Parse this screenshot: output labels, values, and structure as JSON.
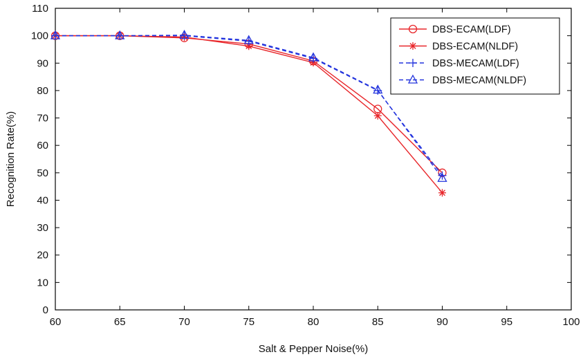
{
  "chart_data": {
    "type": "line",
    "title": "",
    "xlabel": "Salt & Pepper Noise(%)",
    "ylabel": "Recognition Rate(%)",
    "xlim": [
      60,
      100
    ],
    "ylim": [
      0,
      110
    ],
    "xticks": [
      60,
      65,
      70,
      75,
      80,
      85,
      90,
      95,
      100
    ],
    "yticks": [
      0,
      10,
      20,
      30,
      40,
      50,
      60,
      70,
      80,
      90,
      100,
      110
    ],
    "grid": false,
    "legend_position": "top-right",
    "x": [
      60,
      65,
      70,
      75,
      80,
      85,
      90
    ],
    "series": [
      {
        "name": "DBS-ECAM(LDF)",
        "color": "#e8262a",
        "line_style": "solid",
        "marker": "circle",
        "values": [
          100,
          100,
          99.2,
          97,
          90.8,
          73.3,
          50
        ]
      },
      {
        "name": "DBS-ECAM(NLDF)",
        "color": "#e8262a",
        "line_style": "solid",
        "marker": "star",
        "values": [
          100,
          100,
          99.5,
          96.2,
          90.2,
          70.8,
          42.7
        ]
      },
      {
        "name": "DBS-MECAM(LDF)",
        "color": "#2233dd",
        "line_style": "dashed",
        "marker": "plus",
        "values": [
          100,
          100,
          100,
          98,
          91.7,
          80,
          49
        ]
      },
      {
        "name": "DBS-MECAM(NLDF)",
        "color": "#2233dd",
        "line_style": "dashed",
        "marker": "triangle",
        "values": [
          100,
          100,
          100.2,
          98.3,
          92,
          80.2,
          48
        ]
      }
    ]
  }
}
